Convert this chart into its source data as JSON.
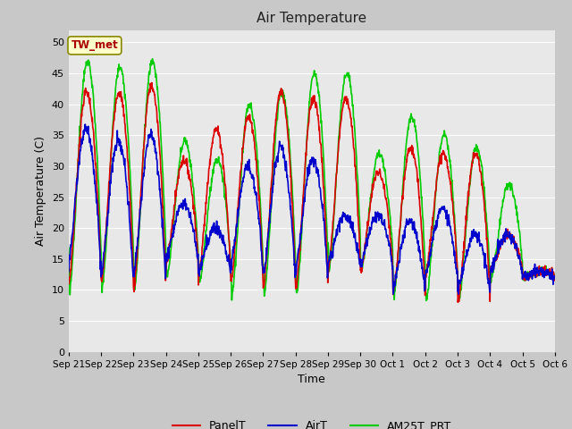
{
  "title": "Air Temperature",
  "xlabel": "Time",
  "ylabel": "Air Temperature (C)",
  "ylim": [
    0,
    52
  ],
  "yticks": [
    0,
    5,
    10,
    15,
    20,
    25,
    30,
    35,
    40,
    45,
    50
  ],
  "xtick_labels": [
    "Sep 21",
    "Sep 22",
    "Sep 23",
    "Sep 24",
    "Sep 25",
    "Sep 26",
    "Sep 27",
    "Sep 28",
    "Sep 29",
    "Sep 30",
    "Oct 1",
    "Oct 2",
    "Oct 3",
    "Oct 4",
    "Oct 5",
    "Oct 6"
  ],
  "fig_bg": "#c8c8c8",
  "plot_bg": "#e8e8e8",
  "grid_color": "#ffffff",
  "annotation_text": "TW_met",
  "annotation_bg": "#ffffcc",
  "annotation_border": "#888800",
  "annotation_text_color": "#aa0000",
  "line_panelT_color": "#dd0000",
  "line_airT_color": "#0000cc",
  "line_am25T_color": "#00cc00",
  "line_width": 1.2,
  "legend_labels": [
    "PanelT",
    "AirT",
    "AM25T_PRT"
  ],
  "day_peaks_panel": [
    42,
    42,
    43,
    31,
    36,
    38,
    42,
    41,
    41,
    29,
    33,
    32,
    32,
    19,
    13
  ],
  "day_peaks_air": [
    36,
    34,
    35,
    24,
    20,
    30,
    33,
    31,
    22,
    22,
    21,
    23,
    19,
    19,
    13
  ],
  "day_peaks_am25": [
    47,
    46,
    47,
    34,
    31,
    40,
    42,
    45,
    45,
    32,
    38,
    35,
    33,
    27,
    13
  ],
  "day_mins_panel": [
    11,
    11,
    10,
    14,
    12,
    11,
    10,
    10,
    13,
    13,
    9,
    12,
    8,
    13,
    12
  ],
  "day_mins_air": [
    14,
    12,
    12,
    15,
    13,
    14,
    12,
    13,
    14,
    14,
    10,
    12,
    10,
    13,
    12
  ],
  "day_mins_am25": [
    10,
    10,
    10,
    12,
    11,
    9,
    9,
    9,
    13,
    13,
    9,
    8,
    8,
    12,
    12
  ]
}
